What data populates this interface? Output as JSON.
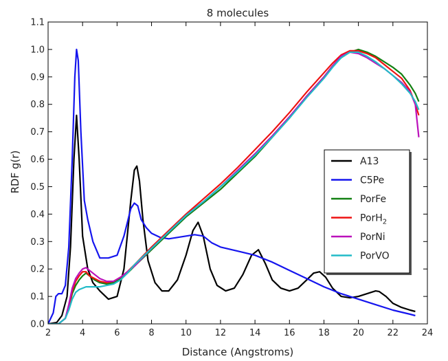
{
  "chart_data": {
    "type": "line",
    "title": "8 molecules",
    "xlabel": "Distance (Angstroms)",
    "ylabel": "RDF g(r)",
    "xlim": [
      2,
      24
    ],
    "ylim": [
      0.0,
      1.1
    ],
    "xticks": [
      "2",
      "4",
      "6",
      "8",
      "10",
      "12",
      "14",
      "16",
      "18",
      "20",
      "22",
      "24"
    ],
    "yticks": [
      "0.0",
      "0.1",
      "0.2",
      "0.3",
      "0.4",
      "0.5",
      "0.6",
      "0.7",
      "0.8",
      "0.9",
      "1.0",
      "1.1"
    ],
    "grid": false,
    "legend_position": "center-right",
    "series": [
      {
        "name": "A13",
        "color": "#000000",
        "x": [
          2.0,
          2.5,
          2.8,
          3.1,
          3.3,
          3.5,
          3.65,
          3.8,
          4.0,
          4.3,
          4.6,
          5.0,
          5.5,
          6.0,
          6.4,
          6.8,
          7.0,
          7.15,
          7.3,
          7.5,
          7.8,
          8.2,
          8.6,
          9.0,
          9.5,
          10.0,
          10.4,
          10.7,
          11.0,
          11.4,
          11.8,
          12.3,
          12.8,
          13.3,
          13.8,
          14.2,
          14.6,
          15.0,
          15.5,
          16.0,
          16.5,
          17.0,
          17.4,
          17.75,
          18.1,
          18.5,
          19.0,
          19.5,
          20.0,
          20.5,
          21.0,
          21.2,
          21.6,
          22.0,
          22.5,
          23.0,
          23.3
        ],
        "y": [
          0.0,
          0.005,
          0.03,
          0.1,
          0.28,
          0.6,
          0.76,
          0.6,
          0.32,
          0.2,
          0.15,
          0.12,
          0.09,
          0.1,
          0.2,
          0.45,
          0.56,
          0.575,
          0.52,
          0.38,
          0.23,
          0.15,
          0.12,
          0.12,
          0.16,
          0.25,
          0.34,
          0.37,
          0.32,
          0.2,
          0.14,
          0.12,
          0.13,
          0.18,
          0.25,
          0.27,
          0.22,
          0.16,
          0.13,
          0.12,
          0.13,
          0.16,
          0.185,
          0.19,
          0.17,
          0.13,
          0.1,
          0.095,
          0.1,
          0.11,
          0.12,
          0.118,
          0.1,
          0.075,
          0.06,
          0.05,
          0.045
        ]
      },
      {
        "name": "C5Pe",
        "color": "#1515ee",
        "x": [
          2.0,
          2.3,
          2.45,
          2.6,
          2.8,
          3.0,
          3.2,
          3.4,
          3.55,
          3.65,
          3.75,
          3.9,
          4.1,
          4.3,
          4.6,
          5.0,
          5.5,
          6.0,
          6.4,
          6.8,
          7.0,
          7.2,
          7.4,
          7.7,
          8.0,
          8.5,
          9.0,
          9.5,
          10.0,
          10.5,
          11.0,
          11.5,
          12.0,
          13.0,
          14.0,
          15.0,
          16.0,
          17.0,
          18.0,
          19.0,
          20.0,
          21.0,
          22.0,
          23.0,
          23.3
        ],
        "y": [
          0.0,
          0.04,
          0.1,
          0.11,
          0.11,
          0.14,
          0.28,
          0.6,
          0.9,
          1.0,
          0.96,
          0.7,
          0.45,
          0.38,
          0.3,
          0.24,
          0.24,
          0.25,
          0.32,
          0.42,
          0.44,
          0.43,
          0.38,
          0.35,
          0.33,
          0.315,
          0.31,
          0.315,
          0.32,
          0.325,
          0.32,
          0.295,
          0.28,
          0.265,
          0.25,
          0.225,
          0.195,
          0.165,
          0.135,
          0.11,
          0.09,
          0.07,
          0.05,
          0.035,
          0.03
        ]
      },
      {
        "name": "PorFe",
        "color": "#128012",
        "x": [
          2.0,
          2.6,
          3.0,
          3.2,
          3.4,
          3.6,
          3.8,
          4.0,
          4.2,
          4.4,
          4.7,
          5.0,
          5.4,
          5.8,
          6.2,
          6.6,
          7.0,
          8.0,
          9.0,
          10.0,
          11.0,
          12.0,
          13.0,
          14.0,
          15.0,
          16.0,
          17.0,
          18.0,
          18.5,
          19.0,
          19.5,
          20.0,
          20.5,
          21.0,
          21.5,
          22.0,
          22.5,
          23.0,
          23.3,
          23.5
        ],
        "y": [
          0.0,
          0.0,
          0.02,
          0.06,
          0.11,
          0.14,
          0.16,
          0.175,
          0.185,
          0.175,
          0.16,
          0.15,
          0.145,
          0.15,
          0.165,
          0.185,
          0.21,
          0.27,
          0.33,
          0.39,
          0.44,
          0.49,
          0.55,
          0.61,
          0.68,
          0.75,
          0.83,
          0.9,
          0.94,
          0.97,
          0.99,
          1.0,
          0.99,
          0.975,
          0.955,
          0.935,
          0.91,
          0.87,
          0.84,
          0.81
        ]
      },
      {
        "name": "PorH",
        "name_subscript": "2",
        "color": "#ee1111",
        "x": [
          2.0,
          2.6,
          3.0,
          3.2,
          3.4,
          3.6,
          3.8,
          4.0,
          4.2,
          4.4,
          4.7,
          5.0,
          5.4,
          5.8,
          6.2,
          6.6,
          7.0,
          8.0,
          9.0,
          10.0,
          11.0,
          12.0,
          13.0,
          14.0,
          15.0,
          16.0,
          17.0,
          18.0,
          18.5,
          19.0,
          19.5,
          20.0,
          20.5,
          21.0,
          21.5,
          22.0,
          22.5,
          23.0,
          23.3,
          23.5
        ],
        "y": [
          0.0,
          0.0,
          0.02,
          0.06,
          0.12,
          0.155,
          0.175,
          0.19,
          0.19,
          0.175,
          0.165,
          0.155,
          0.15,
          0.155,
          0.17,
          0.19,
          0.215,
          0.28,
          0.34,
          0.4,
          0.455,
          0.51,
          0.57,
          0.635,
          0.7,
          0.77,
          0.845,
          0.915,
          0.95,
          0.98,
          0.995,
          0.995,
          0.985,
          0.97,
          0.945,
          0.92,
          0.895,
          0.85,
          0.8,
          0.76
        ]
      },
      {
        "name": "PorNi",
        "color": "#bb11bb",
        "x": [
          2.0,
          2.6,
          3.0,
          3.2,
          3.4,
          3.6,
          3.8,
          4.0,
          4.2,
          4.4,
          4.7,
          5.0,
          5.4,
          5.8,
          6.2,
          6.6,
          7.0,
          8.0,
          9.0,
          10.0,
          11.0,
          12.0,
          13.0,
          14.0,
          15.0,
          16.0,
          17.0,
          18.0,
          18.5,
          19.0,
          19.5,
          20.0,
          20.5,
          21.0,
          21.5,
          22.0,
          22.5,
          23.0,
          23.3,
          23.5
        ],
        "y": [
          0.0,
          0.0,
          0.02,
          0.07,
          0.13,
          0.165,
          0.185,
          0.2,
          0.205,
          0.195,
          0.18,
          0.165,
          0.155,
          0.155,
          0.17,
          0.19,
          0.21,
          0.275,
          0.335,
          0.395,
          0.445,
          0.5,
          0.56,
          0.62,
          0.685,
          0.755,
          0.83,
          0.9,
          0.94,
          0.975,
          0.99,
          0.985,
          0.97,
          0.95,
          0.93,
          0.905,
          0.88,
          0.845,
          0.8,
          0.68
        ]
      },
      {
        "name": "PorVO",
        "color": "#22bbc8",
        "x": [
          2.0,
          2.6,
          3.0,
          3.2,
          3.4,
          3.6,
          3.8,
          4.0,
          4.2,
          4.4,
          4.7,
          5.0,
          5.4,
          5.8,
          6.2,
          6.6,
          7.0,
          8.0,
          9.0,
          10.0,
          11.0,
          12.0,
          13.0,
          14.0,
          15.0,
          16.0,
          17.0,
          18.0,
          18.5,
          19.0,
          19.5,
          20.0,
          20.5,
          21.0,
          21.5,
          22.0,
          22.5,
          23.0,
          23.3,
          23.5
        ],
        "y": [
          0.0,
          0.0,
          0.02,
          0.05,
          0.09,
          0.115,
          0.125,
          0.13,
          0.135,
          0.135,
          0.135,
          0.135,
          0.14,
          0.145,
          0.16,
          0.185,
          0.215,
          0.275,
          0.335,
          0.395,
          0.445,
          0.5,
          0.555,
          0.615,
          0.68,
          0.75,
          0.825,
          0.895,
          0.935,
          0.97,
          0.99,
          0.99,
          0.975,
          0.955,
          0.93,
          0.905,
          0.875,
          0.84,
          0.81,
          0.78
        ]
      }
    ]
  }
}
